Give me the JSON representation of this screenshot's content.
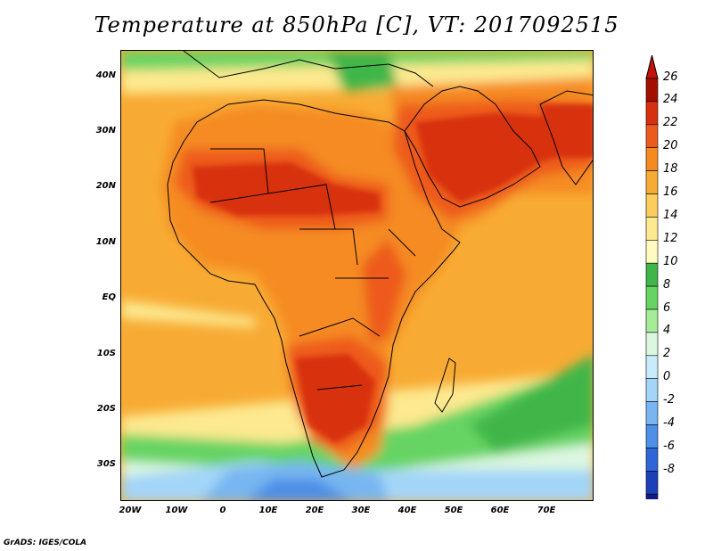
{
  "title": "Temperature at 850hPa [C], VT: 2017092515",
  "credit": "GrADS: IGES/COLA",
  "lat_labels": [
    "40N",
    "30N",
    "20N",
    "10N",
    "EQ",
    "10S",
    "20S",
    "30S"
  ],
  "lon_labels": [
    "20W",
    "10W",
    "0",
    "10E",
    "20E",
    "30E",
    "40E",
    "50E",
    "60E",
    "70E"
  ],
  "colorbar": {
    "labels": [
      "26",
      "24",
      "22",
      "20",
      "18",
      "16",
      "14",
      "12",
      "10",
      "8",
      "6",
      "4",
      "2",
      "0",
      "-2",
      "-4",
      "-6",
      "-8"
    ],
    "colors": [
      "#a50f00",
      "#d7300f",
      "#ed5a1e",
      "#f58b20",
      "#f8ab34",
      "#fbcd5c",
      "#fde98f",
      "#fffbc0",
      "#3fb64a",
      "#66d463",
      "#a4ec98",
      "#dcf7e0",
      "#c8ecfb",
      "#a3d5f8",
      "#77b6f0",
      "#4e8fe7",
      "#2e66d7",
      "#1b40b8",
      "#101d87"
    ],
    "top_overflow_color": "#c4120a",
    "bottom_overflow_color": "#e6e6fa"
  },
  "map": {
    "region": "Africa, Arabia and Indian Ocean",
    "lon_range": [
      -22,
      80
    ],
    "lat_range": [
      -37,
      45
    ],
    "variable": "Temperature at 850hPa",
    "units": "C"
  }
}
